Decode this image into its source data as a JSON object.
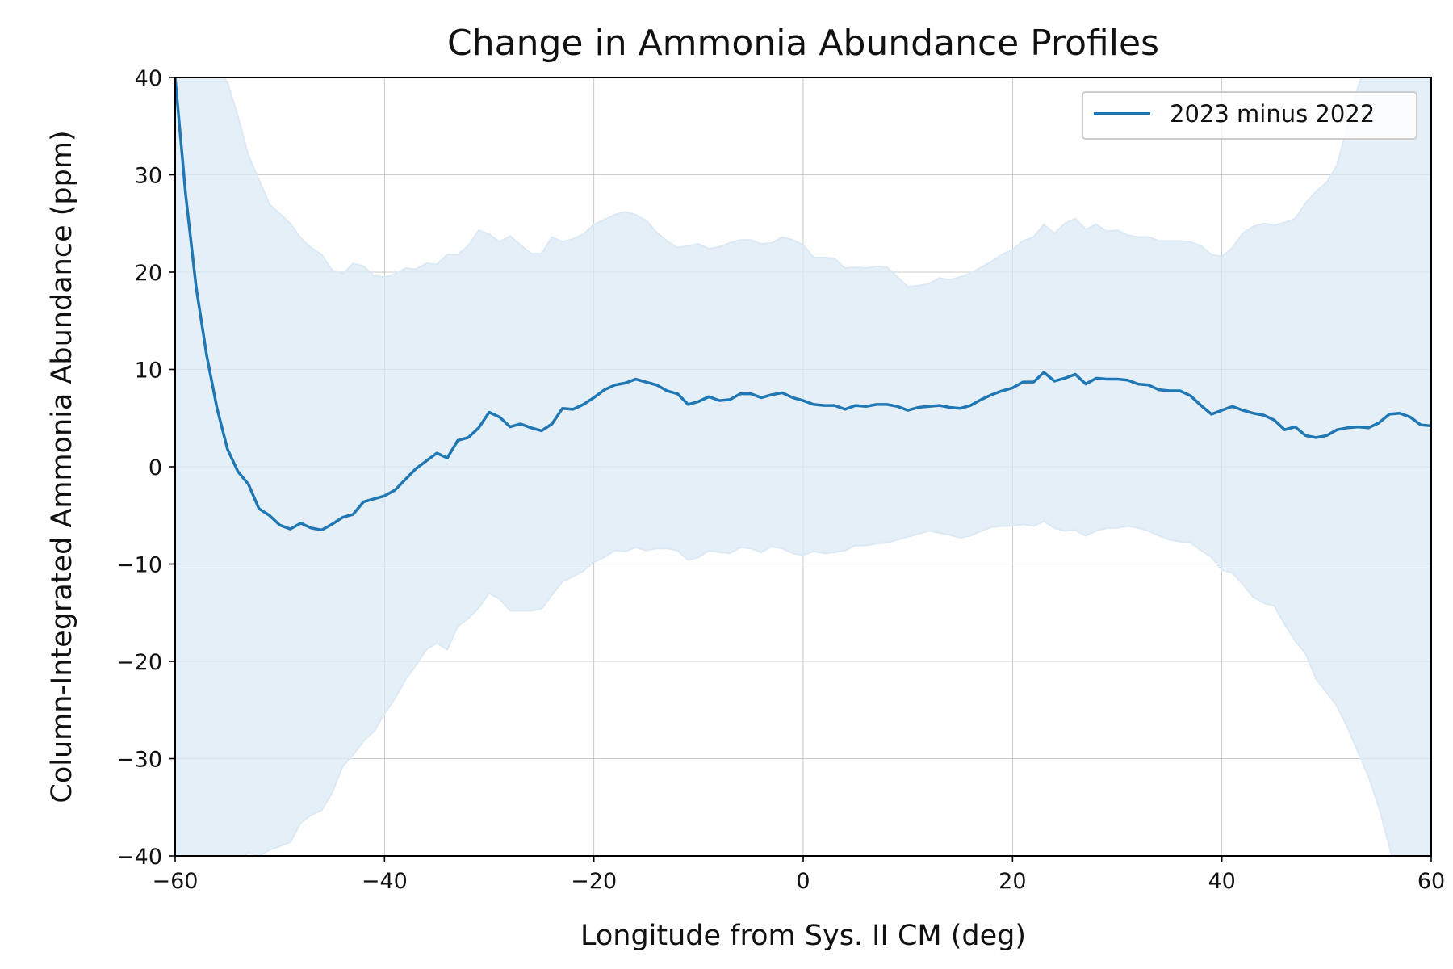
{
  "chart_data": {
    "type": "line",
    "title": "Change in Ammonia Abundance Profiles",
    "xlabel": "Longitude from Sys. II CM (deg)",
    "ylabel": "Column-Integrated Ammonia Abundance (ppm)",
    "xlim": [
      -60,
      60
    ],
    "ylim": [
      -40,
      40
    ],
    "xticks": [
      -60,
      -40,
      -20,
      0,
      20,
      40,
      60
    ],
    "xtick_labels": [
      "−60",
      "−40",
      "−20",
      "0",
      "20",
      "40",
      "60"
    ],
    "yticks": [
      -40,
      -30,
      -20,
      -10,
      0,
      10,
      20,
      30,
      40
    ],
    "ytick_labels": [
      "−40",
      "−30",
      "−20",
      "−10",
      "0",
      "10",
      "20",
      "30",
      "40"
    ],
    "grid": true,
    "legend_position": "top-right",
    "colors": {
      "line": "#1f77b4",
      "band": "#dce9f5"
    },
    "series": [
      {
        "name": "2023 minus 2022",
        "x": [
          -60,
          -59,
          -58,
          -57,
          -56,
          -55,
          -54,
          -53,
          -52,
          -51,
          -50,
          -49,
          -48,
          -47,
          -46,
          -45,
          -44,
          -43,
          -42,
          -41,
          -40,
          -39,
          -38,
          -37,
          -36,
          -35,
          -34,
          -33,
          -32,
          -31,
          -30,
          -29,
          -28,
          -27,
          -26,
          -25,
          -24,
          -23,
          -22,
          -21,
          -20,
          -19,
          -18,
          -17,
          -16,
          -15,
          -14,
          -13,
          -12,
          -11,
          -10,
          -9,
          -8,
          -7,
          -6,
          -5,
          -4,
          -3,
          -2,
          -1,
          0,
          1,
          2,
          3,
          4,
          5,
          6,
          7,
          8,
          9,
          10,
          11,
          12,
          13,
          14,
          15,
          16,
          17,
          18,
          19,
          20,
          21,
          22,
          23,
          24,
          25,
          26,
          27,
          28,
          29,
          30,
          31,
          32,
          33,
          34,
          35,
          36,
          37,
          38,
          39,
          40,
          41,
          42,
          43,
          44,
          45,
          46,
          47,
          48,
          49,
          50,
          51,
          52,
          53,
          54,
          55,
          56,
          57,
          58,
          59,
          60
        ],
        "y": [
          40,
          28,
          18.5,
          11.5,
          6,
          1.8,
          -0.5,
          -1.8,
          -4.3,
          -5,
          -6,
          -6.4,
          -5.8,
          -6.3,
          -6.5,
          -5.9,
          -5.2,
          -4.9,
          -3.6,
          -3.3,
          -3,
          -2.4,
          -1.3,
          -0.2,
          0.6,
          1.4,
          0.9,
          2.7,
          3,
          4,
          5.6,
          5.1,
          4.1,
          4.4,
          4,
          3.7,
          4.4,
          6,
          5.9,
          6.4,
          7.1,
          7.9,
          8.4,
          8.6,
          9,
          8.7,
          8.4,
          7.8,
          7.5,
          6.4,
          6.7,
          7.2,
          6.8,
          6.9,
          7.5,
          7.5,
          7.1,
          7.4,
          7.6,
          7.1,
          6.8,
          6.4,
          6.3,
          6.3,
          5.9,
          6.3,
          6.2,
          6.4,
          6.4,
          6.2,
          5.8,
          6.1,
          6.2,
          6.3,
          6.1,
          6,
          6.3,
          6.9,
          7.4,
          7.8,
          8.1,
          8.7,
          8.7,
          9.7,
          8.8,
          9.1,
          9.5,
          8.5,
          9.1,
          9,
          9,
          8.9,
          8.5,
          8.4,
          7.9,
          7.8,
          7.8,
          7.3,
          6.3,
          5.4,
          5.8,
          6.2,
          5.8,
          5.5,
          5.3,
          4.8,
          3.8,
          4.1,
          3.2,
          3,
          3.2,
          3.8,
          4,
          4.1,
          4,
          4.5,
          5.4,
          5.5,
          5.1,
          4.3,
          4.2
        ],
        "upper": [
          45,
          44,
          43,
          42,
          41,
          39.5,
          36,
          32,
          29.5,
          27,
          26,
          25,
          23.5,
          22.5,
          21.8,
          20.2,
          19.8,
          20.9,
          20.6,
          19.6,
          19.5,
          19.8,
          20.4,
          20.3,
          20.9,
          20.8,
          21.8,
          21.8,
          22.7,
          24.3,
          23.9,
          23.1,
          23.7,
          22.8,
          21.9,
          21.9,
          23.6,
          23.1,
          23.4,
          23.9,
          24.9,
          25.4,
          25.9,
          26.2,
          25.9,
          25.3,
          24.1,
          23.2,
          22.5,
          22.7,
          22.9,
          22.4,
          22.6,
          23,
          23.3,
          23.3,
          22.9,
          23,
          23.6,
          23.3,
          22.8,
          21.5,
          21.5,
          21.4,
          20.4,
          20.5,
          20.4,
          20.6,
          20.5,
          19.5,
          18.5,
          18.6,
          18.8,
          19.4,
          19.2,
          19.5,
          19.9,
          20.5,
          21.1,
          21.8,
          22.3,
          23.2,
          23.6,
          24.9,
          24,
          25,
          25.5,
          24.4,
          24.9,
          24.2,
          24.3,
          23.8,
          23.6,
          23.6,
          23.2,
          23.2,
          23.2,
          23.1,
          22.7,
          21.8,
          21.6,
          22.5,
          24,
          24.7,
          25,
          24.8,
          25.1,
          25.5,
          27.1,
          28.3,
          29.2,
          31,
          35,
          39,
          42,
          44,
          46,
          47,
          48,
          49,
          50
        ],
        "lower": [
          -45,
          -44,
          -43,
          -42,
          -41,
          -40.6,
          -40.7,
          -39.6,
          -40,
          -39.4,
          -39,
          -38.6,
          -36.6,
          -35.8,
          -35.3,
          -33.5,
          -30.8,
          -29.6,
          -28.2,
          -27.2,
          -25.4,
          -23.8,
          -21.9,
          -20.4,
          -18.8,
          -18.1,
          -18.8,
          -16.4,
          -15.6,
          -14.5,
          -13,
          -13.6,
          -14.8,
          -14.8,
          -14.8,
          -14.6,
          -13.2,
          -11.8,
          -11.3,
          -10.7,
          -9.8,
          -9.3,
          -8.6,
          -8.7,
          -8.3,
          -8.6,
          -8.4,
          -8.4,
          -8.6,
          -9.6,
          -9.3,
          -8.6,
          -8.8,
          -8.9,
          -8.3,
          -8.4,
          -8.8,
          -8.2,
          -8.4,
          -8.9,
          -9.1,
          -8.7,
          -8.9,
          -8.8,
          -8.6,
          -8.1,
          -8.1,
          -7.9,
          -7.8,
          -7.5,
          -7.2,
          -6.9,
          -6.6,
          -6.8,
          -7,
          -7.3,
          -7.1,
          -6.6,
          -6.2,
          -6.1,
          -6.1,
          -5.9,
          -6.1,
          -5.6,
          -6.3,
          -6.6,
          -6.5,
          -7.1,
          -6.6,
          -6.3,
          -6.3,
          -6.1,
          -6.3,
          -6.6,
          -7.1,
          -7.5,
          -7.7,
          -7.8,
          -8.6,
          -9.3,
          -10.6,
          -10.9,
          -12.1,
          -13.4,
          -14,
          -14.3,
          -16.2,
          -17.9,
          -19.2,
          -21.8,
          -23.2,
          -24.6,
          -26.8,
          -29.3,
          -31.8,
          -35,
          -39,
          -43,
          -46,
          -48,
          -50
        ]
      }
    ]
  }
}
